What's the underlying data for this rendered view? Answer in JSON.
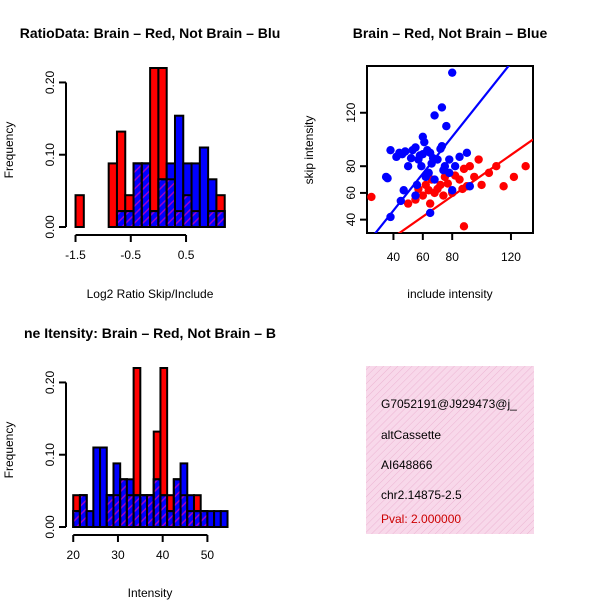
{
  "colors": {
    "red": "#ff0000",
    "blue": "#0000ff",
    "purple": "#9900cc",
    "outline": "#000000",
    "info_bg": "#f8d8ea",
    "info_hatch": "#ecb4d2",
    "pval": "#cc0000"
  },
  "chart_data": [
    {
      "type": "bar",
      "title": "RatioData: Brain – Red, Not Brain – Blu",
      "xlabel": "Log2 Ratio Skip/Include",
      "ylabel": "Frequency",
      "xlim": [
        -1.6,
        1.35
      ],
      "ylim": [
        0,
        0.22
      ],
      "xticks": [
        -1.5,
        -0.5,
        0.5
      ],
      "xtick_labels": [
        "-1.5",
        "-0.5",
        "0.5"
      ],
      "yticks": [
        0,
        0.1,
        0.2
      ],
      "ytick_labels": [
        "0.00",
        "0.10",
        "0.20"
      ],
      "bin_edges": [
        -1.5,
        -1.35,
        -1.2,
        -1.05,
        -0.9,
        -0.75,
        -0.6,
        -0.45,
        -0.3,
        -0.15,
        0.0,
        0.15,
        0.3,
        0.45,
        0.6,
        0.75,
        0.9,
        1.05,
        1.2
      ],
      "series": [
        {
          "name": "Brain",
          "color": "red",
          "values": [
            0.044,
            0,
            0,
            0,
            0.088,
            0.132,
            0.044,
            0.088,
            0.088,
            0.22,
            0.22,
            0.066,
            0.022,
            0.044,
            0.022,
            0,
            0.022,
            0.044
          ]
        },
        {
          "name": "Not Brain",
          "color": "blue",
          "values": [
            0,
            0,
            0,
            0,
            0,
            0.022,
            0.022,
            0.088,
            0.088,
            0.022,
            0.066,
            0.088,
            0.154,
            0.088,
            0.088,
            0.11,
            0.066,
            0.022
          ]
        }
      ]
    },
    {
      "type": "scatter",
      "title": "Brain – Red, Not Brain – Blue",
      "xlabel": "include intensity",
      "ylabel": "skip intensity",
      "xlim": [
        22,
        135
      ],
      "ylim": [
        30,
        155
      ],
      "xticks": [
        40,
        60,
        80,
        120
      ],
      "yticks": [
        40,
        60,
        80,
        120
      ],
      "series": [
        {
          "name": "Brain",
          "color": "red",
          "points": [
            [
              25,
              57
            ],
            [
              50,
              52
            ],
            [
              55,
              55
            ],
            [
              57,
              63
            ],
            [
              60,
              58
            ],
            [
              62,
              66
            ],
            [
              64,
              62
            ],
            [
              65,
              52
            ],
            [
              66,
              70
            ],
            [
              68,
              60
            ],
            [
              70,
              63
            ],
            [
              72,
              66
            ],
            [
              74,
              58
            ],
            [
              75,
              72
            ],
            [
              77,
              67
            ],
            [
              80,
              60
            ],
            [
              82,
              73
            ],
            [
              85,
              70
            ],
            [
              87,
              63
            ],
            [
              88,
              78
            ],
            [
              90,
              65
            ],
            [
              92,
              80
            ],
            [
              95,
              72
            ],
            [
              98,
              85
            ],
            [
              100,
              66
            ],
            [
              105,
              75
            ],
            [
              110,
              80
            ],
            [
              115,
              65
            ],
            [
              122,
              72
            ],
            [
              130,
              80
            ],
            [
              88,
              35
            ]
          ],
          "fit": [
            [
              22,
              13
            ],
            [
              135,
              100
            ]
          ]
        },
        {
          "name": "Not Brain",
          "color": "blue",
          "points": [
            [
              35,
              72
            ],
            [
              36,
              71
            ],
            [
              38,
              42
            ],
            [
              38,
              92
            ],
            [
              42,
              87
            ],
            [
              44,
              90
            ],
            [
              45,
              54
            ],
            [
              46,
              89
            ],
            [
              48,
              91
            ],
            [
              50,
              80
            ],
            [
              52,
              86
            ],
            [
              53,
              92
            ],
            [
              55,
              94
            ],
            [
              56,
              66
            ],
            [
              57,
              85
            ],
            [
              58,
              88
            ],
            [
              59,
              80
            ],
            [
              60,
              89
            ],
            [
              61,
              98
            ],
            [
              62,
              72
            ],
            [
              63,
              92
            ],
            [
              64,
              75
            ],
            [
              65,
              90
            ],
            [
              66,
              82
            ],
            [
              67,
              86
            ],
            [
              68,
              70
            ],
            [
              70,
              85
            ],
            [
              72,
              93
            ],
            [
              73,
              95
            ],
            [
              74,
              77
            ],
            [
              75,
              80
            ],
            [
              76,
              110
            ],
            [
              78,
              85
            ],
            [
              78,
              75
            ],
            [
              80,
              150
            ],
            [
              80,
              62
            ],
            [
              82,
              80
            ],
            [
              85,
              87
            ],
            [
              90,
              90
            ],
            [
              92,
              65
            ],
            [
              60,
              102
            ],
            [
              68,
              118
            ],
            [
              73,
              124
            ],
            [
              65,
              45
            ],
            [
              55,
              58
            ],
            [
              47,
              62
            ]
          ],
          "fit": [
            [
              22,
              22
            ],
            [
              135,
              178
            ]
          ]
        }
      ]
    },
    {
      "type": "bar",
      "title": "ne Itensity: Brain – Red, Not Brain – B",
      "xlabel": "Intensity",
      "ylabel": "Frequency",
      "xlim": [
        19.5,
        55.5
      ],
      "ylim": [
        0,
        0.22
      ],
      "xticks": [
        20,
        30,
        40,
        50
      ],
      "yticks": [
        0,
        0.1,
        0.2
      ],
      "ytick_labels": [
        "0.00",
        "0.10",
        "0.20"
      ],
      "bin_edges": [
        20,
        21.5,
        23,
        24.5,
        26,
        27.5,
        29,
        30.5,
        32,
        33.5,
        35,
        36.5,
        38,
        39.5,
        41,
        42.5,
        44,
        45.5,
        47,
        48.5,
        50,
        51.5,
        53,
        54.5
      ],
      "series": [
        {
          "name": "Brain",
          "color": "red",
          "values": [
            0.044,
            0.044,
            0,
            0,
            0,
            0.044,
            0.044,
            0.066,
            0.044,
            0.22,
            0.044,
            0.044,
            0.132,
            0.22,
            0.044,
            0.066,
            0.044,
            0.022,
            0.044,
            0.022,
            0,
            0,
            0
          ]
        },
        {
          "name": "Not Brain",
          "color": "blue",
          "values": [
            0.022,
            0.044,
            0.022,
            0.11,
            0.11,
            0.044,
            0.088,
            0.066,
            0.066,
            0.044,
            0.044,
            0.044,
            0.066,
            0.044,
            0.022,
            0.066,
            0.088,
            0.044,
            0.022,
            0.022,
            0.022,
            0.022,
            0.022
          ]
        }
      ]
    }
  ],
  "info_box": {
    "event_id": "G7052191@J929473@j_",
    "event_type": "altCassette",
    "accession": "AI648866",
    "location": "chr2.14875-2.5",
    "pval": "Pval: 2.000000"
  }
}
